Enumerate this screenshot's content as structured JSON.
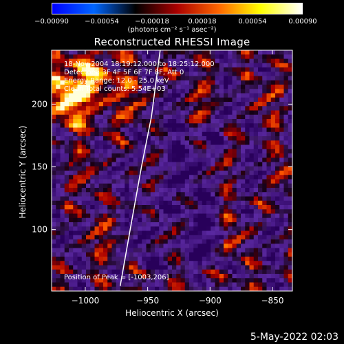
{
  "chart_data": {
    "type": "heatmap",
    "title": "Reconstructed RHESSI Image",
    "xlabel": "Heliocentric X (arcsec)",
    "ylabel": "Heliocentric Y (arcsec)",
    "xlim": [
      -1027,
      -834
    ],
    "ylim": [
      51,
      243
    ],
    "x_ticks": [
      -1000,
      -950,
      -900,
      -850
    ],
    "x_tick_labels": [
      "−1000",
      "−950",
      "−900",
      "−850"
    ],
    "y_ticks": [
      100,
      150,
      200
    ],
    "y_tick_labels": [
      "100",
      "150",
      "200"
    ],
    "colorbar": {
      "range": [
        -0.0009,
        0.0009
      ],
      "ticks": [
        -0.0009,
        -0.00054,
        -0.00018,
        0.00018,
        0.00054,
        0.0009
      ],
      "tick_labels": [
        "−0.00090",
        "−0.00054",
        "−0.00018",
        "0.00018",
        "0.00054",
        "0.00090"
      ],
      "unit_label": "(photons cm⁻² s⁻¹ asec⁻²)",
      "colormap": [
        "#0000ff",
        "#0066ff",
        "#000000",
        "#aa0000",
        "#ff6600",
        "#ffff00",
        "#ffffff"
      ]
    },
    "annotations": [
      "18-Nov-2004 18:19:12.000 to 18:25:12.000",
      "Detectors: 3F 4F 5F 6F 7F 8F, Att 0",
      "Energy Range: 12.0 - 25.0 keV",
      "Clean    Total counts: 5.54E+03"
    ],
    "peak_label": "Position of Peak = [-1003,206]",
    "peak_position": [
      -1003,
      206
    ],
    "limb_line": [
      [
        -972,
        55
      ],
      [
        -964,
        100
      ],
      [
        -955,
        150
      ],
      [
        -947,
        190
      ],
      [
        -940,
        243
      ]
    ],
    "grid": false,
    "legend": "none"
  },
  "footer": {
    "date": "5-May-2022 02:03"
  }
}
